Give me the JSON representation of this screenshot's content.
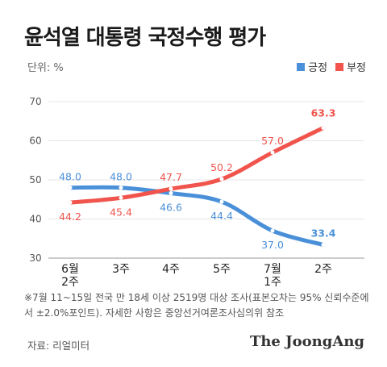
{
  "title": "윤석열 대통령 국정수행 평가",
  "unit_label": "단위: %",
  "note": "※7월 11~15일 전국 만 18세 이상 2519명 대상 조사(표본오차는 95% 신뢰수준에서 ±2.0%포인트). 자세한 사항은 중앙선거여론조사심의위 참조",
  "source": "자료: 리얼미터",
  "brand": "The JoongAng",
  "colors": {
    "positive": "#4a90d9",
    "negative": "#f0544d",
    "grid": "#e6e6e6"
  },
  "chart_data": {
    "type": "line",
    "title": "윤석열 대통령 국정수행 평가",
    "categories": [
      "6월\n2주",
      "3주",
      "4주",
      "5주",
      "7월\n1주",
      "2주"
    ],
    "series": [
      {
        "name": "긍정",
        "values": [
          48.0,
          48.0,
          46.6,
          44.4,
          37.0,
          33.4
        ],
        "labels": [
          "48.0",
          "48.0",
          "46.6",
          "44.4",
          "37.0",
          "33.4"
        ]
      },
      {
        "name": "부정",
        "values": [
          44.2,
          45.4,
          47.7,
          50.2,
          57.0,
          63.3
        ],
        "labels": [
          "44.2",
          "45.4",
          "47.7",
          "50.2",
          "57.0",
          "63.3"
        ]
      }
    ],
    "y_ticks": [
      "70",
      "60",
      "50",
      "40",
      "30"
    ],
    "ylim": [
      30,
      70
    ],
    "legend_position": "top-right",
    "grid": true
  }
}
